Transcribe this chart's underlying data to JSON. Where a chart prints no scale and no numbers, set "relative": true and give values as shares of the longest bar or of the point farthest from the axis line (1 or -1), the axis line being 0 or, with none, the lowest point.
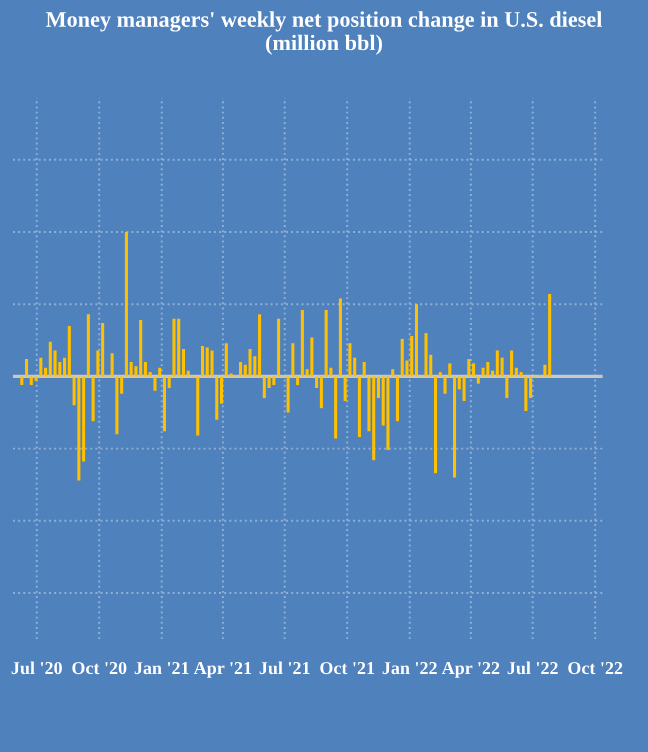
{
  "chart_data": {
    "type": "bar",
    "title": "Money managers' weekly net position change in U.S. diesel\n(million bbl)",
    "relative": true,
    "color": "#ffc000",
    "grid": true,
    "x": [
      "2020-06-09",
      "2020-06-16",
      "2020-06-23",
      "2020-06-30",
      "2020-07-07",
      "2020-07-14",
      "2020-07-21",
      "2020-07-28",
      "2020-08-04",
      "2020-08-11",
      "2020-08-18",
      "2020-08-25",
      "2020-09-01",
      "2020-09-08",
      "2020-09-15",
      "2020-09-22",
      "2020-09-29",
      "2020-10-06",
      "2020-10-13",
      "2020-10-20",
      "2020-10-27",
      "2020-11-03",
      "2020-11-10",
      "2020-11-17",
      "2020-11-24",
      "2020-12-01",
      "2020-12-08",
      "2020-12-15",
      "2020-12-22",
      "2020-12-29",
      "2021-01-05",
      "2021-01-12",
      "2021-01-19",
      "2021-01-26",
      "2021-02-02",
      "2021-02-09",
      "2021-02-16",
      "2021-02-23",
      "2021-03-02",
      "2021-03-09",
      "2021-03-16",
      "2021-03-23",
      "2021-03-30",
      "2021-04-06",
      "2021-04-13",
      "2021-04-20",
      "2021-04-27",
      "2021-05-04",
      "2021-05-11",
      "2021-05-18",
      "2021-05-25",
      "2021-06-01",
      "2021-06-08",
      "2021-06-15",
      "2021-06-22",
      "2021-06-29",
      "2021-07-06",
      "2021-07-13",
      "2021-07-20",
      "2021-07-27",
      "2021-08-03",
      "2021-08-10",
      "2021-08-17",
      "2021-08-24",
      "2021-08-31",
      "2021-09-07",
      "2021-09-14",
      "2021-09-21",
      "2021-09-28",
      "2021-10-05",
      "2021-10-12",
      "2021-10-19",
      "2021-10-26",
      "2021-11-02",
      "2021-11-09",
      "2021-11-16",
      "2021-11-23",
      "2021-11-30",
      "2021-12-07",
      "2021-12-14",
      "2021-12-21",
      "2021-12-28",
      "2022-01-04",
      "2022-01-11",
      "2022-01-18",
      "2022-01-25",
      "2022-02-01",
      "2022-02-08",
      "2022-02-15",
      "2022-02-22",
      "2022-03-01",
      "2022-03-08",
      "2022-03-15",
      "2022-03-22",
      "2022-03-29",
      "2022-04-05",
      "2022-04-12",
      "2022-04-19",
      "2022-04-26",
      "2022-05-03",
      "2022-05-10",
      "2022-05-17",
      "2022-05-24",
      "2022-05-31",
      "2022-06-07",
      "2022-06-14",
      "2022-06-21",
      "2022-06-28",
      "2022-07-05",
      "2022-07-12",
      "2022-07-19",
      "2022-07-26"
    ],
    "values": [
      -0.06,
      0.12,
      -0.06,
      -0.03,
      0.13,
      0.06,
      0.24,
      0.18,
      0.1,
      0.13,
      0.35,
      -0.2,
      -0.72,
      -0.59,
      0.43,
      -0.31,
      0.18,
      0.37,
      0.01,
      0.16,
      -0.4,
      -0.12,
      1.0,
      0.1,
      0.07,
      0.39,
      0.1,
      0.03,
      -0.1,
      0.06,
      -0.38,
      -0.08,
      0.4,
      0.4,
      0.19,
      0.04,
      -0.01,
      -0.41,
      0.21,
      0.2,
      0.18,
      -0.3,
      -0.19,
      0.23,
      0.02,
      0.01,
      0.1,
      0.08,
      0.19,
      0.14,
      0.43,
      -0.15,
      -0.08,
      -0.06,
      0.4,
      0.01,
      -0.25,
      0.23,
      -0.06,
      0.46,
      0.05,
      0.27,
      -0.08,
      -0.22,
      0.46,
      0.06,
      -0.43,
      0.54,
      -0.17,
      0.23,
      0.13,
      -0.42,
      0.1,
      -0.38,
      -0.58,
      -0.15,
      -0.34,
      -0.51,
      0.05,
      -0.31,
      0.26,
      0.11,
      0.28,
      0.5,
      0.01,
      0.3,
      0.15,
      -0.67,
      0.03,
      -0.12,
      0.09,
      -0.7,
      -0.09,
      -0.17,
      0.12,
      0.09,
      -0.05,
      0.06,
      0.1,
      0.04,
      0.18,
      0.13,
      -0.15,
      0.18,
      0.06,
      0.03,
      -0.24,
      -0.15,
      -0.01,
      0.01,
      0.08,
      0.57
    ],
    "xlim": [
      "2020-05-27",
      "2022-10-12"
    ],
    "xticks": [
      {
        "value": "2020-07-01",
        "label": "Jul '20"
      },
      {
        "value": "2020-10-01",
        "label": "Oct '20"
      },
      {
        "value": "2021-01-01",
        "label": "Jan '21"
      },
      {
        "value": "2021-04-01",
        "label": "Apr '21"
      },
      {
        "value": "2021-07-01",
        "label": "Jul '21"
      },
      {
        "value": "2021-10-01",
        "label": "Oct '21"
      },
      {
        "value": "2022-01-01",
        "label": "Jan '22"
      },
      {
        "value": "2022-04-01",
        "label": "Apr '22"
      },
      {
        "value": "2022-07-01",
        "label": "Jul '22"
      },
      {
        "value": "2022-10-01",
        "label": "Oct '22"
      }
    ]
  }
}
